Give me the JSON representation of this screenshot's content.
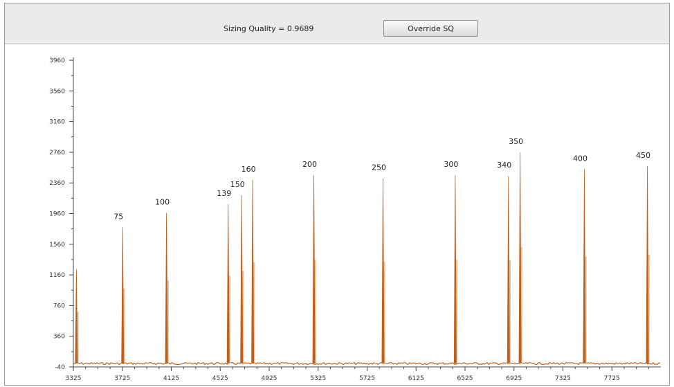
{
  "toolbar": {
    "sizing_quality_text": "Sizing Quality = 0.9689",
    "override_button_label": "Override SQ"
  },
  "colors": {
    "dye_primary": "#c0601c",
    "dye_secondary": "#dcc8a4",
    "baseline": "#c0601c",
    "axis": "#444444"
  },
  "chart_data": {
    "type": "line",
    "title": "",
    "xlabel": "",
    "ylabel": "",
    "xlim": [
      3325,
      8125
    ],
    "ylim": [
      -40,
      3960
    ],
    "x_ticks": [
      3325,
      3725,
      4125,
      4525,
      4925,
      5325,
      5725,
      6125,
      6525,
      6925,
      7325,
      7725
    ],
    "x_tick_labels": [
      "3325",
      "3725",
      "4125",
      "4525",
      "4925",
      "5325",
      "5725",
      "6125",
      "6525",
      "6925",
      "7325",
      "7725"
    ],
    "y_ticks": [
      -40,
      360,
      760,
      1160,
      1560,
      1960,
      2360,
      2760,
      3160,
      3560,
      3960
    ],
    "y_tick_labels": [
      "-40",
      "360",
      "760",
      "1160",
      "1560",
      "1960",
      "2360",
      "2760",
      "3160",
      "3560",
      "3960"
    ],
    "grid": false,
    "series": [
      {
        "color": "#c0601c",
        "peaks": [
          {
            "x": 3350,
            "height": 1230,
            "label": ""
          },
          {
            "x": 3728,
            "height": 1780,
            "label": "75"
          },
          {
            "x": 4086,
            "height": 1970,
            "label": "100"
          },
          {
            "x": 4590,
            "height": 2080,
            "label": "139"
          },
          {
            "x": 4700,
            "height": 2200,
            "label": "150"
          },
          {
            "x": 4790,
            "height": 2400,
            "label": "160"
          },
          {
            "x": 5290,
            "height": 2460,
            "label": "200"
          },
          {
            "x": 5855,
            "height": 2420,
            "label": "250"
          },
          {
            "x": 6445,
            "height": 2460,
            "label": "300"
          },
          {
            "x": 6880,
            "height": 2450,
            "label": "340"
          },
          {
            "x": 6975,
            "height": 2760,
            "label": "350"
          },
          {
            "x": 7500,
            "height": 2540,
            "label": "400"
          },
          {
            "x": 8015,
            "height": 2580,
            "label": "450"
          }
        ]
      }
    ]
  }
}
